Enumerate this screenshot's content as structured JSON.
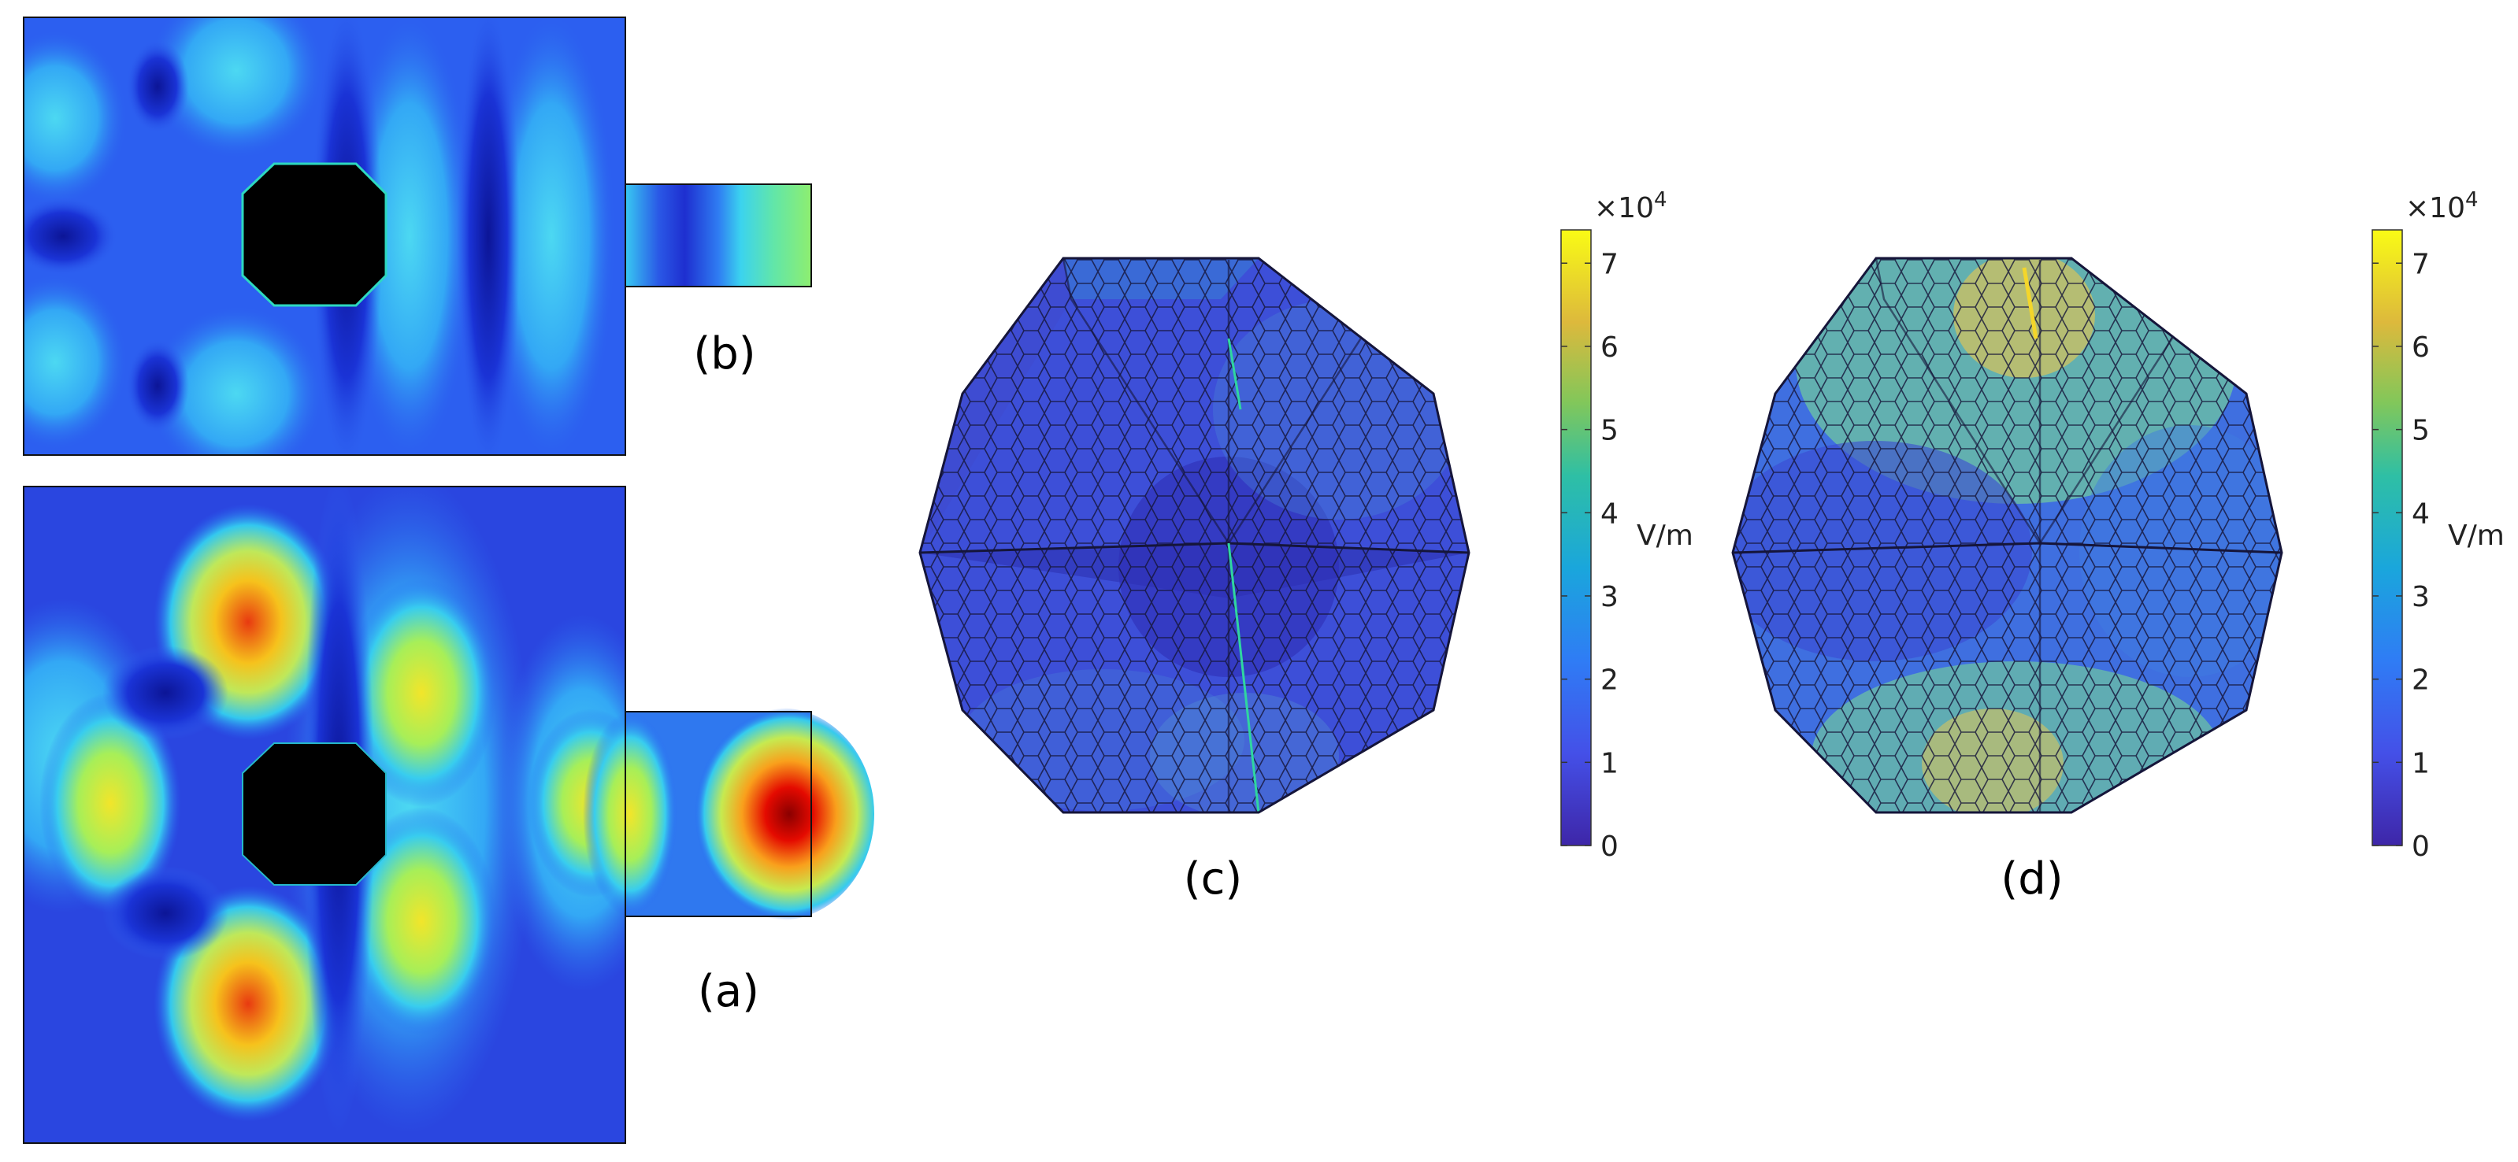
{
  "panels": {
    "a": {
      "caption": "(a)"
    },
    "b": {
      "caption": "(b)"
    },
    "c": {
      "caption": "(c)"
    },
    "d": {
      "caption": "(d)"
    }
  },
  "colorbar": {
    "exponent_label": "×10",
    "exponent_power": "4",
    "unit": "V/m",
    "ticks": [
      "0",
      "1",
      "2",
      "3",
      "4",
      "5",
      "6",
      "7"
    ],
    "range": [
      0,
      7.4
    ]
  },
  "colors": {
    "field_low": "#2a1f8f",
    "field_mid": "#2bb7c9",
    "field_high": "#f2e82a",
    "hot": "#d40000",
    "obstacle": "#000000"
  }
}
